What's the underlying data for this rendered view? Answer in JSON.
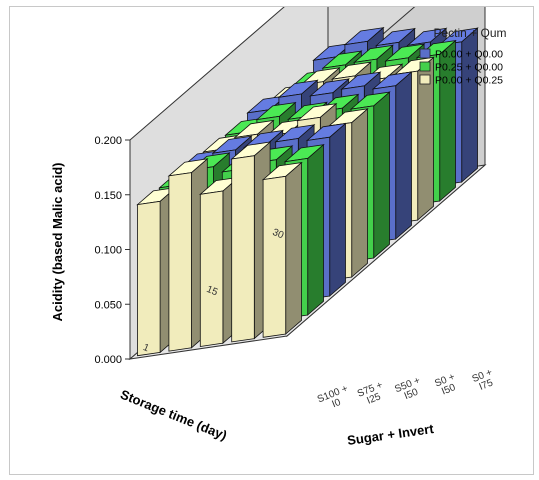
{
  "chart_data": {
    "type": "bar",
    "subtype": "3d-clustered",
    "ylabel": "Acidity (based Malic acid)",
    "xlabel": "Sugar + Invert",
    "zlabel": "Storage time (day)",
    "ylim": [
      0,
      0.2
    ],
    "yticks": [
      "0.000",
      "0.050",
      "0.100",
      "0.150",
      "0.200"
    ],
    "categories": [
      "S100 +\nI0",
      "S75 +\nI25",
      "S50 +\nI50",
      "S0 +\nI50",
      "S0 +\nI75"
    ],
    "storage_times": [
      "1",
      "15",
      "30"
    ],
    "legend": {
      "title": "Pectin + Qum",
      "position": "top-right",
      "entries": [
        "P0.00 + Q0.00",
        "P0.25 + Q0.00",
        "P0.00 + Q0.25"
      ]
    },
    "colors": [
      "#5a6fc9",
      "#43d04b",
      "#f1ecbc"
    ],
    "series": [
      {
        "name": "P0.00 + Q0.00",
        "storage_day": "1",
        "values": [
          0.137,
          0.146,
          0.147,
          0.148,
          0.145
        ]
      },
      {
        "name": "P0.25 + Q0.00",
        "storage_day": "1",
        "values": [
          0.136,
          0.148,
          0.142,
          0.146,
          0.143
        ]
      },
      {
        "name": "P0.00 + Q0.25",
        "storage_day": "1",
        "values": [
          0.138,
          0.16,
          0.139,
          0.167,
          0.144
        ]
      },
      {
        "name": "P0.00 + Q0.00",
        "storage_day": "15",
        "values": [
          0.135,
          0.145,
          0.142,
          0.144,
          0.14
        ]
      },
      {
        "name": "P0.25 + Q0.00",
        "storage_day": "15",
        "values": [
          0.132,
          0.142,
          0.138,
          0.141,
          0.139
        ]
      },
      {
        "name": "P0.00 + Q0.25",
        "storage_day": "15",
        "values": [
          0.134,
          0.143,
          0.14,
          0.15,
          0.141
        ]
      },
      {
        "name": "P0.00 + Q0.00",
        "storage_day": "30",
        "values": [
          0.131,
          0.141,
          0.136,
          0.132,
          0.128
        ]
      },
      {
        "name": "P0.25 + Q0.00",
        "storage_day": "30",
        "values": [
          0.124,
          0.137,
          0.138,
          0.135,
          0.134
        ]
      },
      {
        "name": "P0.00 + Q0.25",
        "storage_day": "30",
        "values": [
          0.128,
          0.139,
          0.14,
          0.134,
          0.136
        ]
      }
    ],
    "grid": false
  }
}
